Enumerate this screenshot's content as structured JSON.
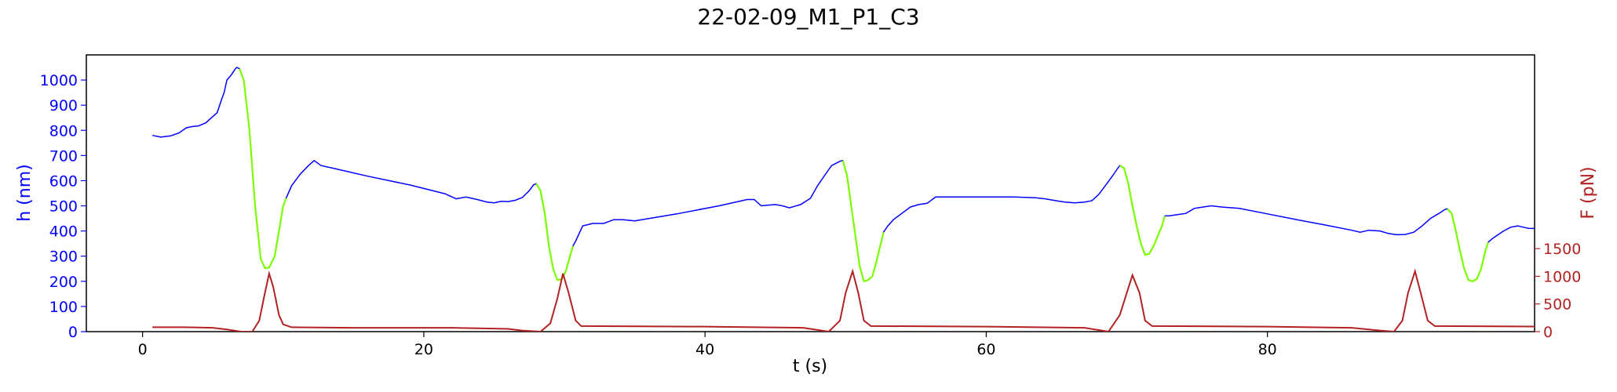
{
  "chart_data": {
    "type": "line",
    "title": "22-02-09_M1_P1_C3",
    "xlabel": "t (s)",
    "ylabel": "h (nm)",
    "ylabel_right": "F (pN)",
    "xlim": [
      -4,
      99
    ],
    "ylim": [
      0,
      1100
    ],
    "ylim_right": [
      0,
      5000
    ],
    "xticks": [
      0,
      20,
      40,
      60,
      80
    ],
    "yticks": [
      0,
      100,
      200,
      300,
      400,
      500,
      600,
      700,
      800,
      900,
      1000
    ],
    "yticks_right": [
      0,
      500,
      1000,
      1500
    ],
    "grid": false,
    "colors": {
      "height": "#0000ff",
      "compression": "#7cfc00",
      "force": "#b22222",
      "left_axis": "#0000ff",
      "right_axis": "#b22222"
    },
    "series": [
      {
        "axis": "left",
        "points": [
          [
            0.7,
            780
          ],
          [
            1.3,
            773
          ],
          [
            2.0,
            778
          ],
          [
            2.6,
            790
          ],
          [
            3.1,
            810
          ],
          [
            3.5,
            815
          ],
          [
            4.0,
            818
          ],
          [
            4.5,
            830
          ],
          [
            5.0,
            855
          ],
          [
            5.3,
            870
          ],
          [
            5.6,
            920
          ],
          [
            5.8,
            950
          ],
          [
            6.0,
            1000
          ],
          [
            6.3,
            1020
          ],
          [
            6.6,
            1045
          ],
          [
            6.7,
            1050
          ],
          [
            6.9,
            1045
          ],
          [
            7.2,
            1000
          ],
          [
            7.6,
            800
          ],
          [
            8.0,
            500
          ],
          [
            8.4,
            290
          ],
          [
            8.7,
            252
          ],
          [
            9.0,
            255
          ],
          [
            9.4,
            300
          ],
          [
            9.7,
            400
          ],
          [
            10.0,
            500
          ],
          [
            10.2,
            530
          ],
          [
            10.6,
            580
          ],
          [
            11.2,
            625
          ],
          [
            11.8,
            660
          ],
          [
            12.2,
            680
          ],
          [
            12.7,
            660
          ],
          [
            13.5,
            650
          ],
          [
            16.0,
            618
          ],
          [
            19.0,
            583
          ],
          [
            21.5,
            548
          ],
          [
            22.3,
            528
          ],
          [
            23.0,
            535
          ],
          [
            23.8,
            525
          ],
          [
            24.5,
            515
          ],
          [
            25.0,
            512
          ],
          [
            25.5,
            518
          ],
          [
            26.0,
            517
          ],
          [
            26.5,
            522
          ],
          [
            27.0,
            533
          ],
          [
            27.5,
            560
          ],
          [
            27.8,
            583
          ],
          [
            28.0,
            588
          ],
          [
            28.3,
            560
          ],
          [
            28.6,
            470
          ],
          [
            28.9,
            340
          ],
          [
            29.2,
            250
          ],
          [
            29.5,
            205
          ],
          [
            29.8,
            208
          ],
          [
            30.1,
            240
          ],
          [
            30.4,
            300
          ],
          [
            30.6,
            340
          ],
          [
            30.8,
            360
          ],
          [
            31.3,
            420
          ],
          [
            32.0,
            430
          ],
          [
            32.8,
            430
          ],
          [
            33.5,
            445
          ],
          [
            34.2,
            445
          ],
          [
            35.0,
            440
          ],
          [
            38.0,
            468
          ],
          [
            41.0,
            500
          ],
          [
            43.0,
            525
          ],
          [
            43.5,
            525
          ],
          [
            44.0,
            500
          ],
          [
            45.0,
            505
          ],
          [
            45.5,
            500
          ],
          [
            46.0,
            492
          ],
          [
            46.8,
            505
          ],
          [
            47.5,
            530
          ],
          [
            48.0,
            580
          ],
          [
            48.5,
            620
          ],
          [
            49.0,
            660
          ],
          [
            49.6,
            677
          ],
          [
            49.8,
            680
          ],
          [
            50.1,
            620
          ],
          [
            50.4,
            500
          ],
          [
            50.7,
            380
          ],
          [
            51.0,
            260
          ],
          [
            51.3,
            200
          ],
          [
            51.6,
            205
          ],
          [
            51.9,
            220
          ],
          [
            52.2,
            280
          ],
          [
            52.5,
            350
          ],
          [
            52.7,
            395
          ],
          [
            53.0,
            420
          ],
          [
            53.4,
            445
          ],
          [
            54.0,
            470
          ],
          [
            54.6,
            495
          ],
          [
            55.2,
            505
          ],
          [
            55.8,
            510
          ],
          [
            56.4,
            535
          ],
          [
            58.0,
            535
          ],
          [
            60.0,
            535
          ],
          [
            62.0,
            535
          ],
          [
            63.5,
            532
          ],
          [
            64.2,
            528
          ],
          [
            65.0,
            520
          ],
          [
            65.6,
            515
          ],
          [
            66.3,
            512
          ],
          [
            67.0,
            515
          ],
          [
            67.5,
            520
          ],
          [
            68.0,
            545
          ],
          [
            68.6,
            590
          ],
          [
            69.0,
            620
          ],
          [
            69.3,
            645
          ],
          [
            69.5,
            660
          ],
          [
            69.8,
            650
          ],
          [
            70.1,
            590
          ],
          [
            70.4,
            500
          ],
          [
            70.7,
            420
          ],
          [
            71.0,
            350
          ],
          [
            71.3,
            305
          ],
          [
            71.6,
            310
          ],
          [
            71.9,
            340
          ],
          [
            72.2,
            380
          ],
          [
            72.5,
            420
          ],
          [
            72.7,
            460
          ],
          [
            73.0,
            460
          ],
          [
            73.6,
            465
          ],
          [
            74.2,
            470
          ],
          [
            74.8,
            490
          ],
          [
            75.4,
            495
          ],
          [
            76.0,
            500
          ],
          [
            76.8,
            495
          ],
          [
            78.0,
            490
          ],
          [
            80.0,
            468
          ],
          [
            82.0,
            446
          ],
          [
            84.0,
            425
          ],
          [
            86.0,
            403
          ],
          [
            86.6,
            395
          ],
          [
            87.2,
            403
          ],
          [
            88.0,
            400
          ],
          [
            88.6,
            390
          ],
          [
            89.2,
            385
          ],
          [
            89.8,
            386
          ],
          [
            90.4,
            395
          ],
          [
            91.0,
            420
          ],
          [
            91.6,
            450
          ],
          [
            92.2,
            470
          ],
          [
            92.6,
            485
          ],
          [
            92.8,
            488
          ],
          [
            93.1,
            470
          ],
          [
            93.4,
            400
          ],
          [
            93.7,
            320
          ],
          [
            94.0,
            250
          ],
          [
            94.3,
            205
          ],
          [
            94.6,
            200
          ],
          [
            94.9,
            210
          ],
          [
            95.2,
            250
          ],
          [
            95.5,
            320
          ],
          [
            95.7,
            355
          ],
          [
            96.0,
            370
          ],
          [
            96.4,
            385
          ],
          [
            96.8,
            400
          ],
          [
            97.3,
            415
          ],
          [
            97.8,
            420
          ],
          [
            98.2,
            415
          ],
          [
            98.6,
            410
          ],
          [
            99.0,
            410
          ],
          [
            99.5,
            408
          ],
          [
            100.0,
            405
          ]
        ]
      },
      {
        "axis": "left",
        "segments": [
          [
            [
              6.9,
              1045
            ],
            [
              7.2,
              1000
            ],
            [
              7.6,
              800
            ],
            [
              8.0,
              500
            ],
            [
              8.4,
              290
            ],
            [
              8.7,
              252
            ],
            [
              9.0,
              255
            ],
            [
              9.4,
              300
            ],
            [
              9.7,
              400
            ],
            [
              10.0,
              500
            ],
            [
              10.2,
              530
            ]
          ],
          [
            [
              28.0,
              588
            ],
            [
              28.3,
              560
            ],
            [
              28.6,
              470
            ],
            [
              28.9,
              340
            ],
            [
              29.2,
              250
            ],
            [
              29.5,
              205
            ],
            [
              29.8,
              208
            ],
            [
              30.1,
              240
            ],
            [
              30.4,
              300
            ],
            [
              30.6,
              340
            ]
          ],
          [
            [
              49.8,
              680
            ],
            [
              50.1,
              620
            ],
            [
              50.4,
              500
            ],
            [
              50.7,
              380
            ],
            [
              51.0,
              260
            ],
            [
              51.3,
              200
            ],
            [
              51.6,
              205
            ],
            [
              51.9,
              220
            ],
            [
              52.2,
              280
            ],
            [
              52.5,
              350
            ],
            [
              52.7,
              395
            ]
          ],
          [
            [
              69.5,
              660
            ],
            [
              69.8,
              650
            ],
            [
              70.1,
              590
            ],
            [
              70.4,
              500
            ],
            [
              70.7,
              420
            ],
            [
              71.0,
              350
            ],
            [
              71.3,
              305
            ],
            [
              71.6,
              310
            ],
            [
              71.9,
              340
            ],
            [
              72.2,
              380
            ],
            [
              72.5,
              420
            ],
            [
              72.7,
              460
            ]
          ],
          [
            [
              92.8,
              488
            ],
            [
              93.1,
              470
            ],
            [
              93.4,
              400
            ],
            [
              93.7,
              320
            ],
            [
              94.0,
              250
            ],
            [
              94.3,
              205
            ],
            [
              94.6,
              200
            ],
            [
              94.9,
              210
            ],
            [
              95.2,
              250
            ],
            [
              95.5,
              320
            ],
            [
              95.7,
              355
            ]
          ]
        ]
      },
      {
        "axis": "right",
        "points": [
          [
            0.7,
            80
          ],
          [
            3.0,
            80
          ],
          [
            5.0,
            70
          ],
          [
            6.0,
            40
          ],
          [
            7.0,
            0
          ],
          [
            7.8,
            0
          ],
          [
            8.3,
            200
          ],
          [
            8.7,
            700
          ],
          [
            9.0,
            1050
          ],
          [
            9.3,
            800
          ],
          [
            9.7,
            300
          ],
          [
            10.0,
            130
          ],
          [
            10.6,
            80
          ],
          [
            15.0,
            70
          ],
          [
            22.0,
            70
          ],
          [
            26.0,
            50
          ],
          [
            27.0,
            20
          ],
          [
            28.3,
            0
          ],
          [
            29.0,
            150
          ],
          [
            29.5,
            600
          ],
          [
            29.9,
            1050
          ],
          [
            30.3,
            700
          ],
          [
            30.8,
            200
          ],
          [
            31.2,
            100
          ],
          [
            40.0,
            90
          ],
          [
            47.0,
            70
          ],
          [
            48.8,
            0
          ],
          [
            49.6,
            200
          ],
          [
            50.0,
            700
          ],
          [
            50.5,
            1090
          ],
          [
            50.9,
            700
          ],
          [
            51.3,
            200
          ],
          [
            51.8,
            100
          ],
          [
            60.0,
            90
          ],
          [
            67.0,
            70
          ],
          [
            68.7,
            0
          ],
          [
            69.5,
            300
          ],
          [
            70.0,
            700
          ],
          [
            70.4,
            1020
          ],
          [
            70.9,
            700
          ],
          [
            71.3,
            200
          ],
          [
            71.8,
            100
          ],
          [
            80.0,
            90
          ],
          [
            86.0,
            70
          ],
          [
            88.0,
            20
          ],
          [
            89.0,
            0
          ],
          [
            89.6,
            200
          ],
          [
            90.0,
            700
          ],
          [
            90.5,
            1090
          ],
          [
            90.9,
            700
          ],
          [
            91.4,
            200
          ],
          [
            91.9,
            100
          ],
          [
            100.0,
            90
          ]
        ]
      }
    ]
  }
}
